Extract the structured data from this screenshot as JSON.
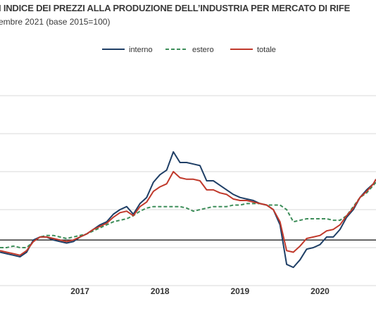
{
  "header": {
    "title": "I INDICE DEI PREZZI ALLA PRODUZIONE DELL’INDUSTRIA PER MERCATO DI RIFE",
    "subtitle": "embre 2021 (base 2015=100)"
  },
  "chart_data": {
    "type": "line",
    "title": "I INDICE DEI PREZZI ALLA PRODUZIONE DELL’INDUSTRIA PER MERCATO DI RIFE",
    "subtitle": "embre 2021 (base 2015=100)",
    "xlabel": "",
    "ylabel": "",
    "x_range": [
      2016.0,
      2020.7
    ],
    "ylim": [
      97,
      112
    ],
    "baseline": 100,
    "x_tick_labels": [
      {
        "label": "2017",
        "at": 2017.0
      },
      {
        "label": "2018",
        "at": 2018.0
      },
      {
        "label": "2019",
        "at": 2019.0
      },
      {
        "label": "2020",
        "at": 2020.0
      }
    ],
    "gridlines_y": [
      97,
      99.5,
      102,
      104.5,
      107,
      109.5
    ],
    "legend_position": "top-center",
    "colors": {
      "interno": "#1f3f66",
      "estero": "#3e8e5a",
      "totale": "#c0392b",
      "baseline": "#222222",
      "grid": "#d9d9d9"
    },
    "x": [
      2016.0,
      2016.083,
      2016.167,
      2016.25,
      2016.333,
      2016.417,
      2016.5,
      2016.583,
      2016.667,
      2016.75,
      2016.833,
      2016.917,
      2017.0,
      2017.083,
      2017.167,
      2017.25,
      2017.333,
      2017.417,
      2017.5,
      2017.583,
      2017.667,
      2017.75,
      2017.833,
      2017.917,
      2018.0,
      2018.083,
      2018.167,
      2018.25,
      2018.333,
      2018.417,
      2018.5,
      2018.583,
      2018.667,
      2018.75,
      2018.833,
      2018.917,
      2019.0,
      2019.083,
      2019.167,
      2019.25,
      2019.333,
      2019.417,
      2019.5,
      2019.583,
      2019.667,
      2019.75,
      2019.833,
      2019.917,
      2020.0,
      2020.083,
      2020.167,
      2020.25,
      2020.333,
      2020.417,
      2020.5,
      2020.583,
      2020.667,
      2020.7
    ],
    "series": [
      {
        "name": "interno",
        "style": "solid",
        "values": [
          99.2,
          99.1,
          99.0,
          98.9,
          99.2,
          100.0,
          100.2,
          100.2,
          100.0,
          99.9,
          99.8,
          99.9,
          100.2,
          100.4,
          100.7,
          101.0,
          101.2,
          101.7,
          102.0,
          102.2,
          101.7,
          102.4,
          102.8,
          103.8,
          104.3,
          104.6,
          105.8,
          105.1,
          105.1,
          105.0,
          104.9,
          103.9,
          103.9,
          103.6,
          103.3,
          103.0,
          102.8,
          102.7,
          102.6,
          102.4,
          102.3,
          102.0,
          101.0,
          98.4,
          98.2,
          98.7,
          99.4,
          99.5,
          99.7,
          100.2,
          100.2,
          100.7,
          101.5,
          102.0,
          102.8,
          103.3,
          103.7,
          104.0
        ]
      },
      {
        "name": "estero",
        "style": "dashed",
        "values": [
          99.5,
          99.5,
          99.6,
          99.5,
          99.5,
          99.9,
          100.2,
          100.3,
          100.3,
          100.2,
          100.1,
          100.2,
          100.3,
          100.4,
          100.6,
          100.8,
          101.0,
          101.2,
          101.3,
          101.4,
          101.6,
          101.9,
          102.1,
          102.2,
          102.2,
          102.2,
          102.2,
          102.2,
          102.1,
          101.9,
          102.0,
          102.1,
          102.2,
          102.2,
          102.2,
          102.3,
          102.3,
          102.4,
          102.4,
          102.4,
          102.3,
          102.3,
          102.3,
          102.0,
          101.2,
          101.3,
          101.4,
          101.4,
          101.4,
          101.4,
          101.3,
          101.3,
          101.6,
          102.2,
          102.8,
          103.1,
          103.6,
          103.8
        ]
      },
      {
        "name": "totale",
        "style": "solid",
        "values": [
          99.3,
          99.2,
          99.1,
          99.0,
          99.3,
          99.9,
          100.2,
          100.2,
          100.1,
          100.0,
          99.9,
          100.0,
          100.2,
          100.4,
          100.7,
          100.9,
          101.1,
          101.5,
          101.8,
          101.9,
          101.6,
          102.2,
          102.5,
          103.2,
          103.5,
          103.7,
          104.5,
          104.1,
          104.0,
          104.0,
          103.9,
          103.3,
          103.3,
          103.1,
          103.0,
          102.7,
          102.6,
          102.6,
          102.5,
          102.4,
          102.3,
          102.0,
          101.2,
          99.3,
          99.2,
          99.6,
          100.1,
          100.2,
          100.3,
          100.6,
          100.7,
          101.0,
          101.6,
          102.1,
          102.8,
          103.2,
          103.7,
          104.0
        ]
      }
    ]
  }
}
